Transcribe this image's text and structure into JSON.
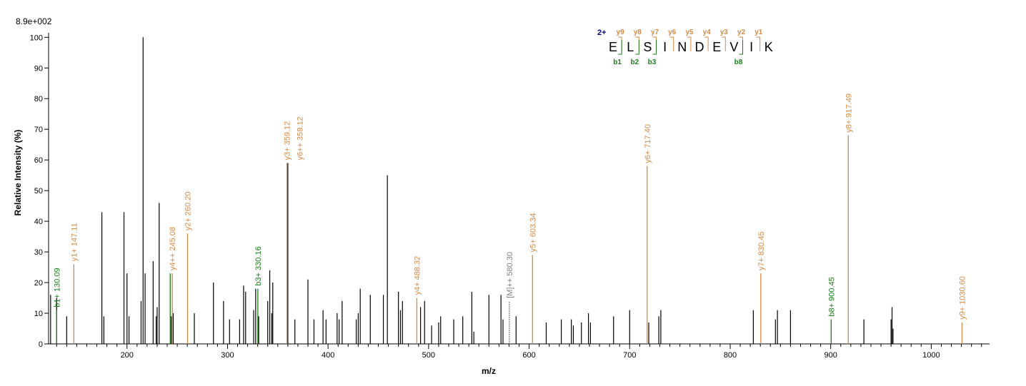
{
  "chart_data": {
    "type": "bar",
    "max_intensity_label": "8.9e+002",
    "xlabel": "m/z",
    "ylabel": "Relative   Intensity (%)",
    "xlim": [
      122,
      1058
    ],
    "ylim": [
      0,
      101
    ],
    "x_ticks": [
      200,
      300,
      400,
      500,
      600,
      700,
      800,
      900,
      1000
    ],
    "y_ticks": [
      0,
      10,
      20,
      30,
      40,
      50,
      60,
      70,
      80,
      90,
      100
    ],
    "grid": false,
    "colors": {
      "unassigned": "#000000",
      "b_ion": "#1a7f1a",
      "y_ion": "#d58a45",
      "precursor": "#808080",
      "charge": "#00008b"
    },
    "peaks": [
      {
        "mz": 124,
        "intensity": 16
      },
      {
        "mz": 130,
        "intensity": 15
      },
      {
        "mz": 140,
        "intensity": 9
      },
      {
        "mz": 175,
        "intensity": 43
      },
      {
        "mz": 177,
        "intensity": 9
      },
      {
        "mz": 197,
        "intensity": 43
      },
      {
        "mz": 200,
        "intensity": 23
      },
      {
        "mz": 202,
        "intensity": 9
      },
      {
        "mz": 214,
        "intensity": 14
      },
      {
        "mz": 216,
        "intensity": 100
      },
      {
        "mz": 218,
        "intensity": 23
      },
      {
        "mz": 226,
        "intensity": 27
      },
      {
        "mz": 229,
        "intensity": 9
      },
      {
        "mz": 230,
        "intensity": 12
      },
      {
        "mz": 232,
        "intensity": 46
      },
      {
        "mz": 244,
        "intensity": 9
      },
      {
        "mz": 246,
        "intensity": 10
      },
      {
        "mz": 267,
        "intensity": 10
      },
      {
        "mz": 286,
        "intensity": 20
      },
      {
        "mz": 296,
        "intensity": 14
      },
      {
        "mz": 302,
        "intensity": 8
      },
      {
        "mz": 312,
        "intensity": 8
      },
      {
        "mz": 316,
        "intensity": 19
      },
      {
        "mz": 318,
        "intensity": 17
      },
      {
        "mz": 326,
        "intensity": 11
      },
      {
        "mz": 328,
        "intensity": 18
      },
      {
        "mz": 331,
        "intensity": 9
      },
      {
        "mz": 340,
        "intensity": 14
      },
      {
        "mz": 342,
        "intensity": 24
      },
      {
        "mz": 345,
        "intensity": 20
      },
      {
        "mz": 344,
        "intensity": 10
      },
      {
        "mz": 360,
        "intensity": 59
      },
      {
        "mz": 367,
        "intensity": 8
      },
      {
        "mz": 380,
        "intensity": 21
      },
      {
        "mz": 386,
        "intensity": 8
      },
      {
        "mz": 395,
        "intensity": 11
      },
      {
        "mz": 398,
        "intensity": 8
      },
      {
        "mz": 409,
        "intensity": 10
      },
      {
        "mz": 411,
        "intensity": 8
      },
      {
        "mz": 414,
        "intensity": 14
      },
      {
        "mz": 428,
        "intensity": 8
      },
      {
        "mz": 430,
        "intensity": 10
      },
      {
        "mz": 432,
        "intensity": 18
      },
      {
        "mz": 442,
        "intensity": 16
      },
      {
        "mz": 455,
        "intensity": 16
      },
      {
        "mz": 459,
        "intensity": 55
      },
      {
        "mz": 470,
        "intensity": 17
      },
      {
        "mz": 472,
        "intensity": 11
      },
      {
        "mz": 474,
        "intensity": 14
      },
      {
        "mz": 492,
        "intensity": 12
      },
      {
        "mz": 496,
        "intensity": 14
      },
      {
        "mz": 503,
        "intensity": 6
      },
      {
        "mz": 510,
        "intensity": 7
      },
      {
        "mz": 512,
        "intensity": 9
      },
      {
        "mz": 525,
        "intensity": 8
      },
      {
        "mz": 534,
        "intensity": 9
      },
      {
        "mz": 543,
        "intensity": 17
      },
      {
        "mz": 545,
        "intensity": 4
      },
      {
        "mz": 560,
        "intensity": 16
      },
      {
        "mz": 572,
        "intensity": 16
      },
      {
        "mz": 574,
        "intensity": 8
      },
      {
        "mz": 587,
        "intensity": 9
      },
      {
        "mz": 617,
        "intensity": 7
      },
      {
        "mz": 632,
        "intensity": 8
      },
      {
        "mz": 642,
        "intensity": 8
      },
      {
        "mz": 644,
        "intensity": 6
      },
      {
        "mz": 652,
        "intensity": 7
      },
      {
        "mz": 659,
        "intensity": 10
      },
      {
        "mz": 661,
        "intensity": 7
      },
      {
        "mz": 684,
        "intensity": 9
      },
      {
        "mz": 700,
        "intensity": 11
      },
      {
        "mz": 719,
        "intensity": 7
      },
      {
        "mz": 729,
        "intensity": 9
      },
      {
        "mz": 731,
        "intensity": 11
      },
      {
        "mz": 823,
        "intensity": 11
      },
      {
        "mz": 845,
        "intensity": 8
      },
      {
        "mz": 847,
        "intensity": 11
      },
      {
        "mz": 860,
        "intensity": 11
      },
      {
        "mz": 933,
        "intensity": 8
      },
      {
        "mz": 960,
        "intensity": 8
      },
      {
        "mz": 961,
        "intensity": 12
      },
      {
        "mz": 962,
        "intensity": 5
      }
    ],
    "annotated_peaks": [
      {
        "mz": 130.09,
        "intensity": 11,
        "ion": "b",
        "label": "b1+ 130.09"
      },
      {
        "mz": 147.11,
        "intensity": 26,
        "ion": "y",
        "label": "y1+ 147.11"
      },
      {
        "mz": 243.0,
        "intensity": 23,
        "ion": "b",
        "label": ""
      },
      {
        "mz": 245.08,
        "intensity": 23,
        "ion": "y",
        "label": "y4++ 245.08"
      },
      {
        "mz": 260.2,
        "intensity": 36,
        "ion": "y",
        "label": "y2+ 260.20"
      },
      {
        "mz": 330.16,
        "intensity": 18,
        "ion": "b",
        "label": "b3+ 330.16"
      },
      {
        "mz": 359.12,
        "intensity": 59,
        "ion": "y",
        "label": "y3+ 359.12"
      },
      {
        "mz": 359.12,
        "intensity": 59,
        "ion": "y",
        "label": "y6++ 359.12"
      },
      {
        "mz": 488.32,
        "intensity": 15,
        "ion": "y",
        "label": "y4+ 488.32"
      },
      {
        "mz": 580.3,
        "intensity": 14,
        "ion": "precursor",
        "label": "[M]++ 580.30"
      },
      {
        "mz": 603.34,
        "intensity": 29,
        "ion": "y",
        "label": "y5+ 603.34"
      },
      {
        "mz": 717.4,
        "intensity": 58,
        "ion": "y",
        "label": "y6+ 717.40"
      },
      {
        "mz": 830.45,
        "intensity": 23,
        "ion": "y",
        "label": "y7+ 830.45"
      },
      {
        "mz": 900.45,
        "intensity": 8,
        "ion": "b",
        "label": "b8+ 900.45"
      },
      {
        "mz": 917.49,
        "intensity": 68,
        "ion": "y",
        "label": "y8+ 917.49"
      },
      {
        "mz": 1030.6,
        "intensity": 7,
        "ion": "y",
        "label": "y9+ 1030.60"
      }
    ],
    "sequence": {
      "charge_label": "2+",
      "residues": [
        "E",
        "L",
        "S",
        "I",
        "N",
        "D",
        "E",
        "V",
        "I",
        "K"
      ],
      "y_ions": [
        {
          "label": "y9",
          "after": 0
        },
        {
          "label": "y8",
          "after": 1
        },
        {
          "label": "y7",
          "after": 2
        },
        {
          "label": "y6",
          "after": 3
        },
        {
          "label": "y5",
          "after": 4
        },
        {
          "label": "y4",
          "after": 5
        },
        {
          "label": "y3",
          "after": 6
        },
        {
          "label": "y2",
          "after": 7
        },
        {
          "label": "y1",
          "after": 8
        }
      ],
      "b_ions": [
        {
          "label": "b1",
          "after": 0
        },
        {
          "label": "b2",
          "after": 1
        },
        {
          "label": "b3",
          "after": 2
        },
        {
          "label": "b8",
          "after": 7
        }
      ]
    }
  }
}
